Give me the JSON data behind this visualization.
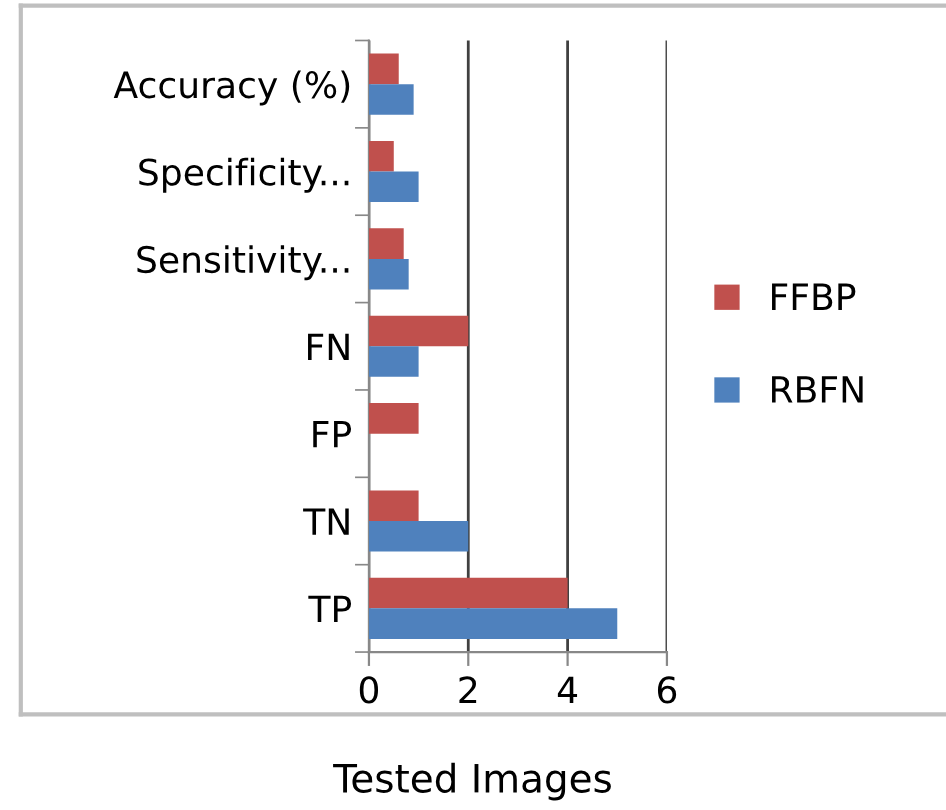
{
  "chart_data": {
    "type": "bar",
    "orientation": "horizontal",
    "xlabel": "Tested Images",
    "categories": [
      "Accuracy (%)",
      "Specificity...",
      "Sensitivity...",
      "FN",
      "FP",
      "TN",
      "TP"
    ],
    "series": [
      {
        "name": "FFBP",
        "color": "#c0504d",
        "values": [
          0.6,
          0.5,
          0.7,
          2,
          1,
          1,
          4
        ]
      },
      {
        "name": "RBFN",
        "color": "#4f81bd",
        "values": [
          0.9,
          1.0,
          0.8,
          1,
          0,
          2,
          5
        ]
      }
    ],
    "xlim": [
      0,
      6
    ],
    "xticks": [
      0,
      2,
      4,
      6
    ],
    "grid": "x",
    "legend": "right"
  }
}
